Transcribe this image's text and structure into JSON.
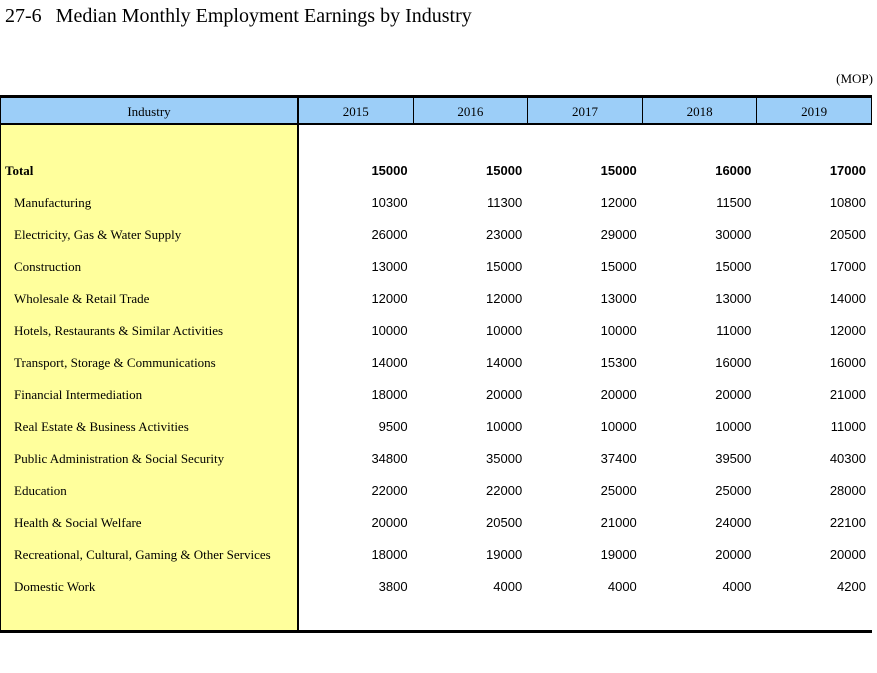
{
  "page": {
    "title_number": "27-6",
    "title_text": "Median Monthly Employment Earnings by Industry",
    "unit_label": "(MOP)"
  },
  "colors": {
    "header_bg": "#9CCEF8",
    "industry_bg": "#FFFF9C",
    "border": "#000000"
  },
  "table": {
    "industry_header": "Industry",
    "year_headers": [
      "2015",
      "2016",
      "2017",
      "2018",
      "2019"
    ],
    "rows": [
      {
        "label": "Total",
        "bold": true,
        "indent": false,
        "values": [
          "15000",
          "15000",
          "15000",
          "16000",
          "17000"
        ]
      },
      {
        "label": "Manufacturing",
        "bold": false,
        "indent": true,
        "values": [
          "10300",
          "11300",
          "12000",
          "11500",
          "10800"
        ]
      },
      {
        "label": "Electricity, Gas & Water Supply",
        "bold": false,
        "indent": true,
        "values": [
          "26000",
          "23000",
          "29000",
          "30000",
          "20500"
        ]
      },
      {
        "label": "Construction",
        "bold": false,
        "indent": true,
        "values": [
          "13000",
          "15000",
          "15000",
          "15000",
          "17000"
        ]
      },
      {
        "label": "Wholesale & Retail Trade",
        "bold": false,
        "indent": true,
        "values": [
          "12000",
          "12000",
          "13000",
          "13000",
          "14000"
        ]
      },
      {
        "label": "Hotels, Restaurants & Similar Activities",
        "bold": false,
        "indent": true,
        "values": [
          "10000",
          "10000",
          "10000",
          "11000",
          "12000"
        ]
      },
      {
        "label": "Transport, Storage & Communications",
        "bold": false,
        "indent": true,
        "values": [
          "14000",
          "14000",
          "15300",
          "16000",
          "16000"
        ]
      },
      {
        "label": "Financial Intermediation",
        "bold": false,
        "indent": true,
        "values": [
          "18000",
          "20000",
          "20000",
          "20000",
          "21000"
        ]
      },
      {
        "label": "Real Estate & Business Activities",
        "bold": false,
        "indent": true,
        "values": [
          "9500",
          "10000",
          "10000",
          "10000",
          "11000"
        ]
      },
      {
        "label": "Public Administration & Social Security",
        "bold": false,
        "indent": true,
        "values": [
          "34800",
          "35000",
          "37400",
          "39500",
          "40300"
        ]
      },
      {
        "label": "Education",
        "bold": false,
        "indent": true,
        "values": [
          "22000",
          "22000",
          "25000",
          "25000",
          "28000"
        ]
      },
      {
        "label": "Health & Social Welfare",
        "bold": false,
        "indent": true,
        "values": [
          "20000",
          "20500",
          "21000",
          "24000",
          "22100"
        ]
      },
      {
        "label": "Recreational, Cultural, Gaming & Other Services",
        "bold": false,
        "indent": true,
        "values": [
          "18000",
          "19000",
          "19000",
          "20000",
          "20000"
        ]
      },
      {
        "label": "Domestic Work",
        "bold": false,
        "indent": true,
        "values": [
          "3800",
          "4000",
          "4000",
          "4000",
          "4200"
        ]
      }
    ]
  },
  "chart_data": {
    "type": "table",
    "title": "27-6 Median Monthly Employment Earnings by Industry",
    "unit": "MOP",
    "categories": [
      "2015",
      "2016",
      "2017",
      "2018",
      "2019"
    ],
    "series": [
      {
        "name": "Total",
        "values": [
          15000,
          15000,
          15000,
          16000,
          17000
        ]
      },
      {
        "name": "Manufacturing",
        "values": [
          10300,
          11300,
          12000,
          11500,
          10800
        ]
      },
      {
        "name": "Electricity, Gas & Water Supply",
        "values": [
          26000,
          23000,
          29000,
          30000,
          20500
        ]
      },
      {
        "name": "Construction",
        "values": [
          13000,
          15000,
          15000,
          15000,
          17000
        ]
      },
      {
        "name": "Wholesale & Retail Trade",
        "values": [
          12000,
          12000,
          13000,
          13000,
          14000
        ]
      },
      {
        "name": "Hotels, Restaurants & Similar Activities",
        "values": [
          10000,
          10000,
          10000,
          11000,
          12000
        ]
      },
      {
        "name": "Transport, Storage & Communications",
        "values": [
          14000,
          14000,
          15300,
          16000,
          16000
        ]
      },
      {
        "name": "Financial Intermediation",
        "values": [
          18000,
          20000,
          20000,
          20000,
          21000
        ]
      },
      {
        "name": "Real Estate & Business Activities",
        "values": [
          9500,
          10000,
          10000,
          10000,
          11000
        ]
      },
      {
        "name": "Public Administration & Social Security",
        "values": [
          34800,
          35000,
          37400,
          39500,
          40300
        ]
      },
      {
        "name": "Education",
        "values": [
          22000,
          22000,
          25000,
          25000,
          28000
        ]
      },
      {
        "name": "Health & Social Welfare",
        "values": [
          20000,
          20500,
          21000,
          24000,
          22100
        ]
      },
      {
        "name": "Recreational, Cultural, Gaming & Other Services",
        "values": [
          18000,
          19000,
          19000,
          20000,
          20000
        ]
      },
      {
        "name": "Domestic Work",
        "values": [
          3800,
          4000,
          4000,
          4000,
          4200
        ]
      }
    ]
  }
}
